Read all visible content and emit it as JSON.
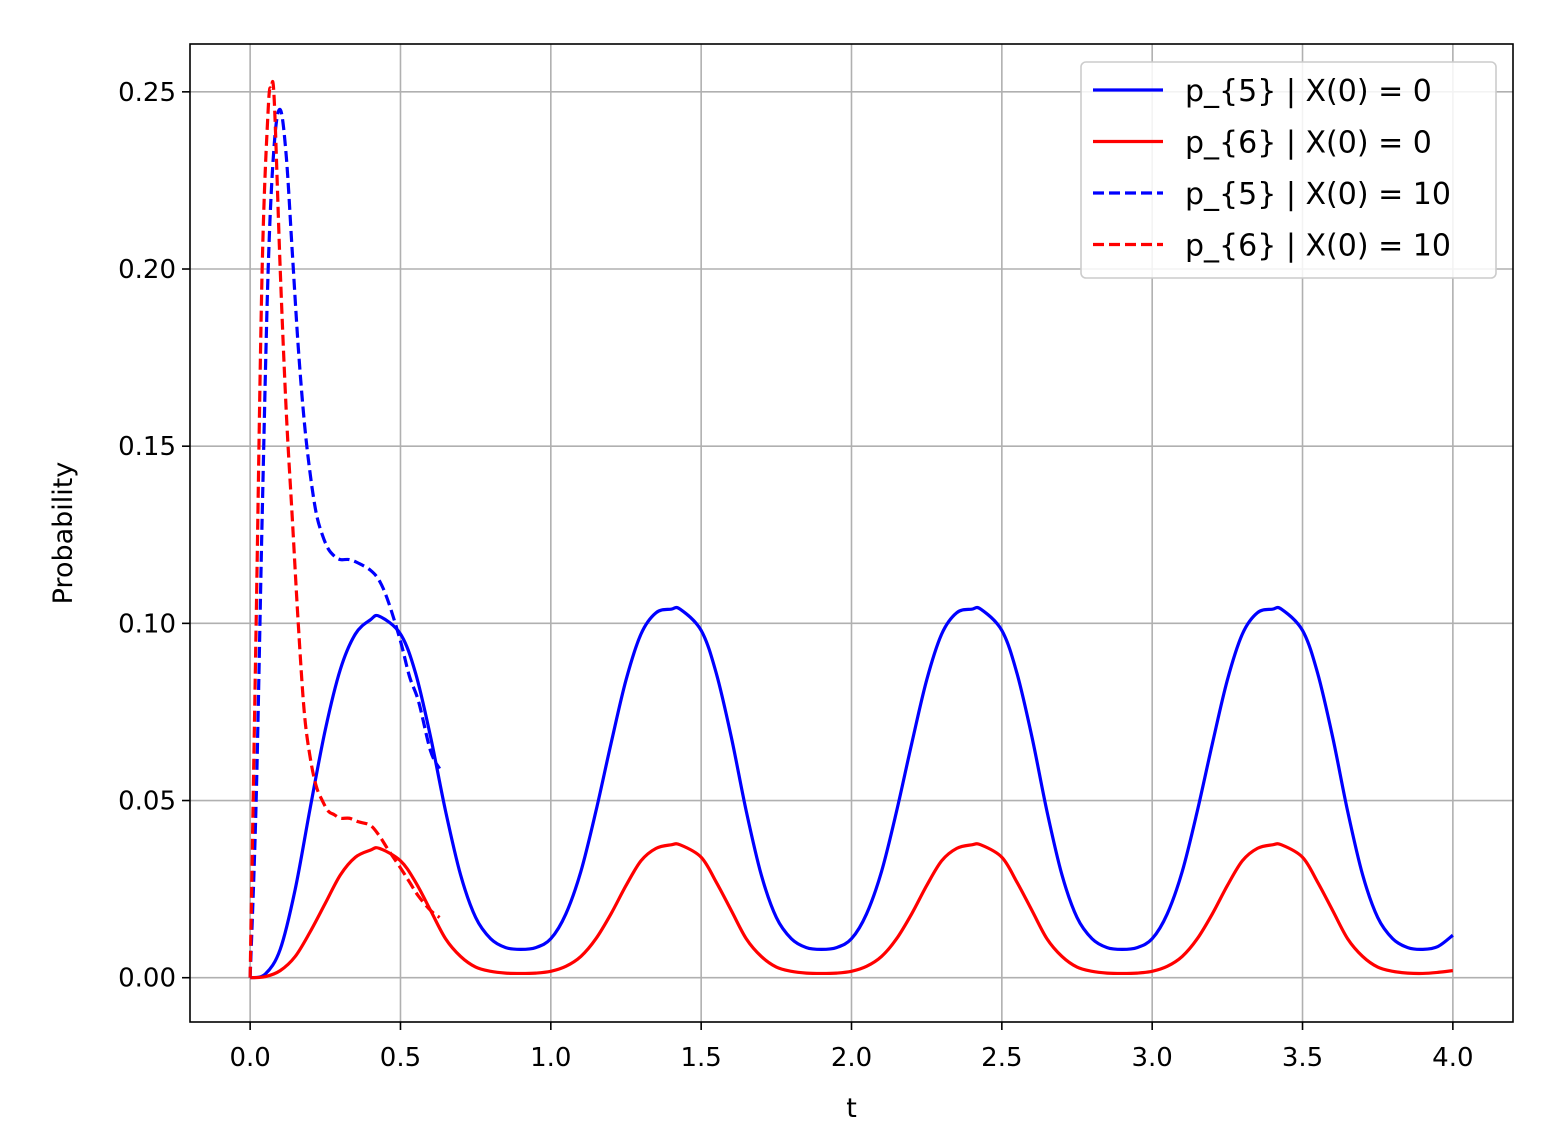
{
  "chart_data": {
    "type": "line",
    "title": "",
    "xlabel": "t",
    "ylabel": "Probability",
    "xlim": [
      -0.2,
      4.2
    ],
    "ylim": [
      -0.0125,
      0.2635
    ],
    "xticks": [
      0.0,
      0.5,
      1.0,
      1.5,
      2.0,
      2.5,
      3.0,
      3.5,
      4.0
    ],
    "xtick_labels": [
      "0.0",
      "0.5",
      "1.0",
      "1.5",
      "2.0",
      "2.5",
      "3.0",
      "3.5",
      "4.0"
    ],
    "yticks": [
      0.0,
      0.05,
      0.1,
      0.15,
      0.2,
      0.25
    ],
    "ytick_labels": [
      "0.00",
      "0.05",
      "0.10",
      "0.15",
      "0.20",
      "0.25"
    ],
    "grid": true,
    "legend_position": "top-right",
    "series": [
      {
        "name": "p_{5} | X(0) = 0",
        "color": "#0000ff",
        "dash": "solid",
        "x": [
          0,
          0.05,
          0.1,
          0.15,
          0.2,
          0.25,
          0.3,
          0.35,
          0.4,
          0.43,
          0.5,
          0.55,
          0.6,
          0.65,
          0.7,
          0.75,
          0.8,
          0.85,
          0.9,
          0.95,
          1.0,
          1.05,
          1.1,
          1.15,
          1.2,
          1.25,
          1.3,
          1.35,
          1.4,
          1.43,
          1.5,
          1.55,
          1.6,
          1.65,
          1.7,
          1.75,
          1.8,
          1.85,
          1.9,
          1.95,
          2.0,
          2.05,
          2.1,
          2.15,
          2.2,
          2.25,
          2.3,
          2.35,
          2.4,
          2.43,
          2.5,
          2.55,
          2.6,
          2.65,
          2.7,
          2.75,
          2.8,
          2.85,
          2.9,
          2.95,
          3.0,
          3.05,
          3.1,
          3.15,
          3.2,
          3.25,
          3.3,
          3.35,
          3.4,
          3.43,
          3.5,
          3.55,
          3.6,
          3.65,
          3.7,
          3.75,
          3.8,
          3.85,
          3.9,
          3.95,
          4.0
        ],
        "y": [
          0,
          0.001,
          0.008,
          0.025,
          0.048,
          0.07,
          0.087,
          0.097,
          0.101,
          0.102,
          0.097,
          0.086,
          0.068,
          0.047,
          0.029,
          0.017,
          0.011,
          0.0085,
          0.008,
          0.0085,
          0.011,
          0.018,
          0.03,
          0.047,
          0.066,
          0.084,
          0.097,
          0.103,
          0.104,
          0.104,
          0.098,
          0.086,
          0.068,
          0.047,
          0.029,
          0.017,
          0.011,
          0.0085,
          0.008,
          0.0085,
          0.011,
          0.018,
          0.03,
          0.047,
          0.066,
          0.084,
          0.097,
          0.103,
          0.104,
          0.104,
          0.098,
          0.086,
          0.068,
          0.047,
          0.029,
          0.017,
          0.011,
          0.0085,
          0.008,
          0.0085,
          0.011,
          0.018,
          0.03,
          0.047,
          0.066,
          0.084,
          0.097,
          0.103,
          0.104,
          0.104,
          0.098,
          0.086,
          0.068,
          0.047,
          0.029,
          0.017,
          0.011,
          0.0085,
          0.008,
          0.0088,
          0.012
        ]
      },
      {
        "name": "p_{6} | X(0) = 0",
        "color": "#ff0000",
        "dash": "solid",
        "x": [
          0,
          0.05,
          0.1,
          0.15,
          0.2,
          0.25,
          0.3,
          0.35,
          0.4,
          0.43,
          0.5,
          0.55,
          0.6,
          0.65,
          0.7,
          0.75,
          0.8,
          0.85,
          0.9,
          0.95,
          1.0,
          1.05,
          1.1,
          1.15,
          1.2,
          1.25,
          1.3,
          1.35,
          1.4,
          1.43,
          1.5,
          1.55,
          1.6,
          1.65,
          1.7,
          1.75,
          1.8,
          1.85,
          1.9,
          1.95,
          2.0,
          2.05,
          2.1,
          2.15,
          2.2,
          2.25,
          2.3,
          2.35,
          2.4,
          2.43,
          2.5,
          2.55,
          2.6,
          2.65,
          2.7,
          2.75,
          2.8,
          2.85,
          2.9,
          2.95,
          3.0,
          3.05,
          3.1,
          3.15,
          3.2,
          3.25,
          3.3,
          3.35,
          3.4,
          3.43,
          3.5,
          3.55,
          3.6,
          3.65,
          3.7,
          3.75,
          3.8,
          3.85,
          3.9,
          3.95,
          4.0
        ],
        "y": [
          0,
          0.0003,
          0.002,
          0.006,
          0.013,
          0.021,
          0.029,
          0.034,
          0.036,
          0.0365,
          0.033,
          0.027,
          0.019,
          0.011,
          0.006,
          0.003,
          0.0018,
          0.0013,
          0.0012,
          0.0013,
          0.0018,
          0.0032,
          0.006,
          0.011,
          0.018,
          0.026,
          0.033,
          0.0365,
          0.0375,
          0.0375,
          0.034,
          0.027,
          0.019,
          0.011,
          0.006,
          0.003,
          0.0018,
          0.0013,
          0.0012,
          0.0013,
          0.0018,
          0.0032,
          0.006,
          0.011,
          0.018,
          0.026,
          0.033,
          0.0365,
          0.0375,
          0.0375,
          0.034,
          0.027,
          0.019,
          0.011,
          0.006,
          0.003,
          0.0018,
          0.0013,
          0.0012,
          0.0013,
          0.0018,
          0.0032,
          0.006,
          0.011,
          0.018,
          0.026,
          0.033,
          0.0365,
          0.0375,
          0.0375,
          0.034,
          0.027,
          0.019,
          0.011,
          0.006,
          0.003,
          0.0018,
          0.0013,
          0.0012,
          0.0015,
          0.002
        ]
      },
      {
        "name": "p_{5} | X(0) = 10",
        "color": "#0000ff",
        "dash": "dashed",
        "x": [
          0,
          0.02,
          0.04,
          0.06,
          0.08,
          0.1,
          0.12,
          0.14,
          0.16,
          0.18,
          0.2,
          0.22,
          0.24,
          0.26,
          0.28,
          0.3,
          0.33,
          0.36,
          0.4,
          0.43,
          0.46,
          0.5,
          0.53,
          0.56,
          0.6,
          0.63
        ],
        "y": [
          0,
          0.05,
          0.13,
          0.2,
          0.235,
          0.245,
          0.232,
          0.205,
          0.178,
          0.157,
          0.142,
          0.131,
          0.125,
          0.121,
          0.119,
          0.118,
          0.118,
          0.117,
          0.115,
          0.112,
          0.106,
          0.095,
          0.085,
          0.078,
          0.064,
          0.059
        ]
      },
      {
        "name": "p_{6} | X(0) = 10",
        "color": "#ff0000",
        "dash": "dashed",
        "x": [
          0,
          0.02,
          0.04,
          0.06,
          0.07,
          0.08,
          0.1,
          0.12,
          0.14,
          0.16,
          0.18,
          0.2,
          0.22,
          0.24,
          0.26,
          0.28,
          0.3,
          0.33,
          0.36,
          0.4,
          0.43,
          0.46,
          0.5,
          0.53,
          0.56,
          0.6,
          0.63
        ],
        "y": [
          0,
          0.1,
          0.2,
          0.245,
          0.251,
          0.248,
          0.2,
          0.16,
          0.13,
          0.1,
          0.075,
          0.062,
          0.054,
          0.05,
          0.047,
          0.046,
          0.045,
          0.045,
          0.044,
          0.043,
          0.04,
          0.036,
          0.031,
          0.027,
          0.023,
          0.019,
          0.017
        ]
      }
    ]
  }
}
